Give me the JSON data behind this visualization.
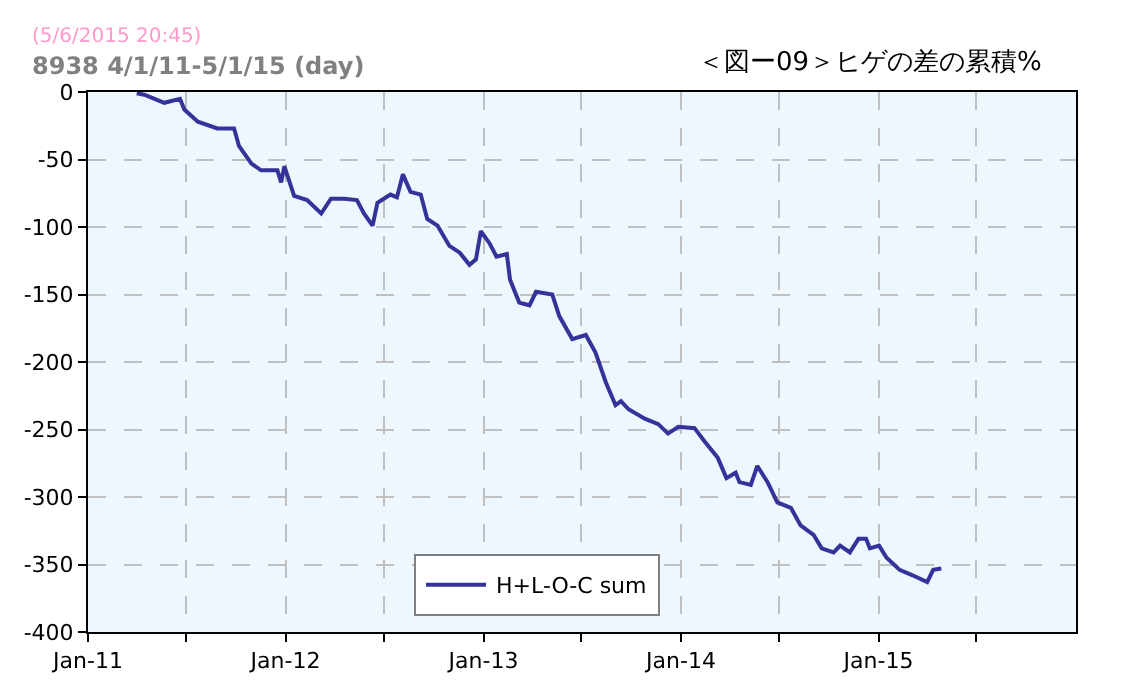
{
  "chart_data": {
    "type": "line",
    "title": "＜図ー09＞ヒゲの差の累積%",
    "subtitle": "8938 4/1/11-5/1/15 (day)",
    "annotations": [
      "(5/6/2015 20:45)"
    ],
    "series": [
      {
        "name": "H+L-O-C sum",
        "color": "#333399",
        "x": [
          "2011-04-01",
          "2011-04-15",
          "2011-05-22",
          "2011-06-20",
          "2011-06-28",
          "2011-07-23",
          "2011-08-28",
          "2011-09-28",
          "2011-10-07",
          "2011-10-30",
          "2011-11-17",
          "2011-12-17",
          "2011-12-24",
          "2011-12-30",
          "2012-01-17",
          "2012-02-10",
          "2012-03-07",
          "2012-03-25",
          "2012-04-19",
          "2012-05-12",
          "2012-05-25",
          "2012-06-10",
          "2012-06-19",
          "2012-07-13",
          "2012-07-25",
          "2012-08-05",
          "2012-08-19",
          "2012-09-07",
          "2012-09-19",
          "2012-10-08",
          "2012-10-30",
          "2012-11-18",
          "2012-12-06",
          "2012-12-18",
          "2012-12-27",
          "2013-01-12",
          "2013-01-25",
          "2013-02-13",
          "2013-02-19",
          "2013-03-08",
          "2013-03-27",
          "2013-04-08",
          "2013-05-08",
          "2013-05-21",
          "2013-06-14",
          "2013-07-09",
          "2013-07-27",
          "2013-08-15",
          "2013-09-02",
          "2013-09-12",
          "2013-09-26",
          "2013-10-26",
          "2013-11-20",
          "2013-12-08",
          "2013-12-27",
          "2014-01-26",
          "2014-02-14",
          "2014-03-10",
          "2014-03-26",
          "2014-04-12",
          "2014-04-19",
          "2014-05-10",
          "2014-05-22",
          "2014-06-10",
          "2014-06-28",
          "2014-07-23",
          "2014-08-10",
          "2014-09-03",
          "2014-09-18",
          "2014-10-10",
          "2014-10-22",
          "2014-11-09",
          "2014-11-25",
          "2014-12-09",
          "2014-12-16",
          "2015-01-02",
          "2015-01-16",
          "2015-02-09",
          "2015-03-05",
          "2015-04-01",
          "2015-04-12",
          "2015-04-27"
        ],
        "values": [
          -1,
          -2,
          -8,
          -5,
          -13,
          -22,
          -27,
          -27,
          -40,
          -53,
          -58,
          -58,
          -67,
          -55,
          -77,
          -80,
          -90,
          -79,
          -79,
          -80,
          -90,
          -99,
          -82,
          -76,
          -78,
          -61,
          -74,
          -76,
          -94,
          -99,
          -114,
          -119,
          -128,
          -124,
          -103,
          -112,
          -122,
          -120,
          -139,
          -156,
          -158,
          -148,
          -150,
          -166,
          -183,
          -180,
          -193,
          -215,
          -232,
          -229,
          -235,
          -242,
          -246,
          -253,
          -248,
          -249,
          -259,
          -271,
          -286,
          -282,
          -289,
          -291,
          -277,
          -289,
          -304,
          -308,
          -321,
          -328,
          -338,
          -341,
          -336,
          -341,
          -331,
          -331,
          -338,
          -336,
          -345,
          -354,
          -358,
          -363,
          -354,
          -353
        ]
      }
    ],
    "xlim": [
      "2011-01-01",
      "2016-01-01"
    ],
    "xticks": [
      {
        "value": "2011-01-01",
        "label": "Jan-11"
      },
      {
        "value": "2011-07-01",
        "label": null
      },
      {
        "value": "2012-01-01",
        "label": "Jan-12"
      },
      {
        "value": "2012-07-01",
        "label": null
      },
      {
        "value": "2013-01-01",
        "label": "Jan-13"
      },
      {
        "value": "2013-07-01",
        "label": null
      },
      {
        "value": "2014-01-01",
        "label": "Jan-14"
      },
      {
        "value": "2014-07-01",
        "label": null
      },
      {
        "value": "2015-01-01",
        "label": "Jan-15"
      },
      {
        "value": "2015-07-01",
        "label": null
      }
    ],
    "ylim": [
      -400,
      0
    ],
    "yticks": [
      0,
      -50,
      -100,
      -150,
      -200,
      -250,
      -300,
      -350,
      -400
    ],
    "grid": true,
    "legend": "bottom",
    "marker": "none",
    "line_style": "solid"
  }
}
